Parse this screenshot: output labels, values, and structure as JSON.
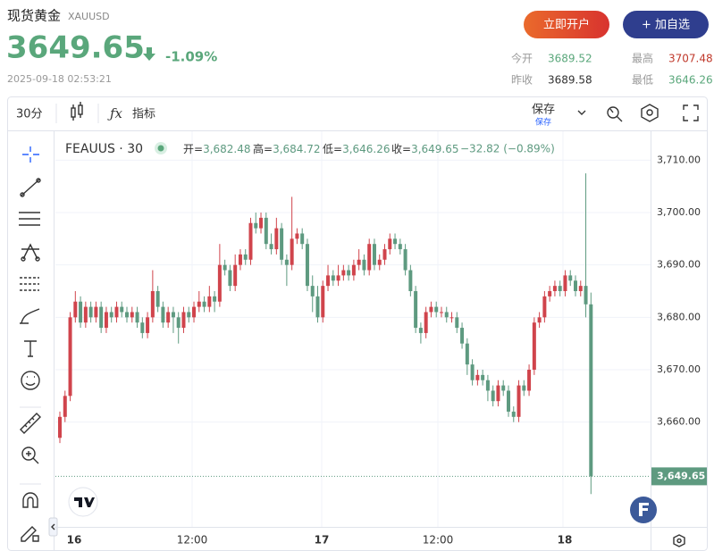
{
  "header": {
    "title": "现货黄金",
    "symbol": "XAUUSD",
    "price": "3649.65",
    "change": "-1.09%",
    "datetime": "2025-09-18 02:53:21",
    "buttons": [
      "立即开户",
      "+ 加自选"
    ],
    "stats": [
      {
        "label": "今开",
        "value": "3689.52"
      },
      {
        "label": "最高",
        "value": "3707.48"
      },
      {
        "label": "昨收",
        "value": "3689.58"
      },
      {
        "label": "最低",
        "value": "3646.26"
      }
    ]
  },
  "toolbar": {
    "interval": "30分",
    "indicators": "指标",
    "save": "保存",
    "save_sub": "保存"
  },
  "chart_data": {
    "type": "candlestick",
    "symbol_label": "FEAUUS · 30",
    "legend": [
      {
        "label": "开=",
        "value": "3,682.48"
      },
      {
        "label": "高=",
        "value": "3,684.72"
      },
      {
        "label": "低=",
        "value": "3,646.26"
      },
      {
        "label": "收=",
        "value": "3,649.65"
      }
    ],
    "change_label": "−32.82 (−0.89%)",
    "last_price_label": "3,649.65",
    "up_color": "#d0444c",
    "down_color": "#5e9a80",
    "grid": true,
    "ylim": [
      3640,
      3715
    ],
    "yticks": [
      {
        "value": 3660,
        "label": "3,660.00"
      },
      {
        "value": 3670,
        "label": "3,670.00"
      },
      {
        "value": 3680,
        "label": "3,680.00"
      },
      {
        "value": 3690,
        "label": "3,690.00"
      },
      {
        "value": 3700,
        "label": "3,700.00"
      },
      {
        "value": 3710,
        "label": "3,710.00"
      }
    ],
    "x_labels": [
      "16",
      "12:00",
      "17",
      "12:00",
      "18"
    ],
    "candles": [
      [
        3657,
        3662,
        3656,
        3661
      ],
      [
        3661,
        3666,
        3660,
        3665
      ],
      [
        3665,
        3681,
        3664,
        3680
      ],
      [
        3680,
        3685,
        3679,
        3683
      ],
      [
        3683,
        3684,
        3678,
        3679
      ],
      [
        3679,
        3683,
        3678,
        3682
      ],
      [
        3682,
        3683,
        3679,
        3680
      ],
      [
        3680,
        3683,
        3679,
        3682
      ],
      [
        3682,
        3683,
        3677,
        3678
      ],
      [
        3678,
        3682,
        3677,
        3681
      ],
      [
        3681,
        3682,
        3679,
        3680
      ],
      [
        3680,
        3683,
        3679,
        3682
      ],
      [
        3682,
        3683,
        3680,
        3681
      ],
      [
        3681,
        3682,
        3679,
        3680
      ],
      [
        3680,
        3682,
        3679,
        3681
      ],
      [
        3681,
        3682,
        3678,
        3679
      ],
      [
        3679,
        3680,
        3676,
        3677
      ],
      [
        3677,
        3681,
        3676,
        3680
      ],
      [
        3680,
        3689,
        3679,
        3685
      ],
      [
        3685,
        3686,
        3681,
        3682
      ],
      [
        3682,
        3683,
        3678,
        3679
      ],
      [
        3679,
        3682,
        3678,
        3681
      ],
      [
        3681,
        3682,
        3677,
        3680
      ],
      [
        3680,
        3681,
        3675,
        3678
      ],
      [
        3678,
        3682,
        3677,
        3681
      ],
      [
        3681,
        3682,
        3679,
        3680
      ],
      [
        3680,
        3683,
        3679,
        3682
      ],
      [
        3682,
        3685,
        3681,
        3683
      ],
      [
        3683,
        3684,
        3681,
        3682
      ],
      [
        3682,
        3686,
        3681,
        3684
      ],
      [
        3684,
        3685,
        3681,
        3683
      ],
      [
        3683,
        3694,
        3682,
        3690
      ],
      [
        3690,
        3691,
        3688,
        3689
      ],
      [
        3689,
        3690,
        3685,
        3686
      ],
      [
        3686,
        3692,
        3685,
        3690
      ],
      [
        3690,
        3693,
        3689,
        3692
      ],
      [
        3692,
        3693,
        3690,
        3691
      ],
      [
        3691,
        3699,
        3690,
        3698
      ],
      [
        3698,
        3700,
        3696,
        3697
      ],
      [
        3697,
        3700,
        3696,
        3699
      ],
      [
        3699,
        3700,
        3693,
        3694
      ],
      [
        3694,
        3696,
        3692,
        3693
      ],
      [
        3693,
        3699,
        3692,
        3697
      ],
      [
        3697,
        3698,
        3690,
        3691
      ],
      [
        3691,
        3692,
        3686,
        3690
      ],
      [
        3690,
        3703,
        3689,
        3695
      ],
      [
        3695,
        3697,
        3694,
        3696
      ],
      [
        3696,
        3697,
        3693,
        3694
      ],
      [
        3694,
        3695,
        3685,
        3686
      ],
      [
        3686,
        3688,
        3681,
        3684
      ],
      [
        3684,
        3686,
        3679,
        3680
      ],
      [
        3680,
        3687,
        3679,
        3686
      ],
      [
        3686,
        3690,
        3685,
        3688
      ],
      [
        3688,
        3689,
        3686,
        3687
      ],
      [
        3687,
        3690,
        3686,
        3688
      ],
      [
        3688,
        3690,
        3687,
        3689
      ],
      [
        3689,
        3690,
        3687,
        3688
      ],
      [
        3688,
        3691,
        3687,
        3690
      ],
      [
        3690,
        3693,
        3689,
        3691
      ],
      [
        3691,
        3692,
        3688,
        3689
      ],
      [
        3689,
        3695,
        3688,
        3694
      ],
      [
        3694,
        3695,
        3689,
        3690
      ],
      [
        3690,
        3692,
        3689,
        3691
      ],
      [
        3691,
        3694,
        3690,
        3693
      ],
      [
        3693,
        3696,
        3692,
        3695
      ],
      [
        3695,
        3696,
        3693,
        3694
      ],
      [
        3694,
        3695,
        3692,
        3693
      ],
      [
        3693,
        3694,
        3688,
        3689
      ],
      [
        3689,
        3690,
        3684,
        3685
      ],
      [
        3685,
        3686,
        3677,
        3678
      ],
      [
        3678,
        3679,
        3675,
        3677
      ],
      [
        3677,
        3682,
        3676,
        3681
      ],
      [
        3681,
        3683,
        3680,
        3682
      ],
      [
        3682,
        3683,
        3680,
        3681
      ],
      [
        3681,
        3682,
        3680,
        3681
      ],
      [
        3681,
        3682,
        3679,
        3680
      ],
      [
        3680,
        3681,
        3679,
        3680
      ],
      [
        3680,
        3681,
        3677,
        3678
      ],
      [
        3678,
        3679,
        3674,
        3675
      ],
      [
        3675,
        3676,
        3669,
        3671
      ],
      [
        3671,
        3672,
        3667,
        3668
      ],
      [
        3668,
        3670,
        3667,
        3669
      ],
      [
        3669,
        3670,
        3667,
        3668
      ],
      [
        3668,
        3669,
        3664,
        3666
      ],
      [
        3666,
        3667,
        3663,
        3664
      ],
      [
        3664,
        3668,
        3663,
        3667
      ],
      [
        3667,
        3668,
        3665,
        3666
      ],
      [
        3666,
        3667,
        3661,
        3662
      ],
      [
        3662,
        3663,
        3660,
        3661
      ],
      [
        3661,
        3668,
        3660,
        3667
      ],
      [
        3667,
        3668,
        3665,
        3666
      ],
      [
        3666,
        3671,
        3665,
        3670
      ],
      [
        3670,
        3680,
        3669,
        3679
      ],
      [
        3679,
        3681,
        3678,
        3680
      ],
      [
        3680,
        3685,
        3679,
        3684
      ],
      [
        3684,
        3686,
        3683,
        3685
      ],
      [
        3685,
        3687,
        3684,
        3686
      ],
      [
        3686,
        3687,
        3684,
        3685
      ],
      [
        3685,
        3689,
        3684,
        3688
      ],
      [
        3688,
        3689,
        3686,
        3687
      ],
      [
        3687,
        3688,
        3684,
        3685
      ],
      [
        3685,
        3687,
        3684,
        3686
      ],
      [
        3686,
        3707.48,
        3680,
        3682.48
      ],
      [
        3682.48,
        3684.72,
        3646.26,
        3649.65
      ]
    ]
  }
}
